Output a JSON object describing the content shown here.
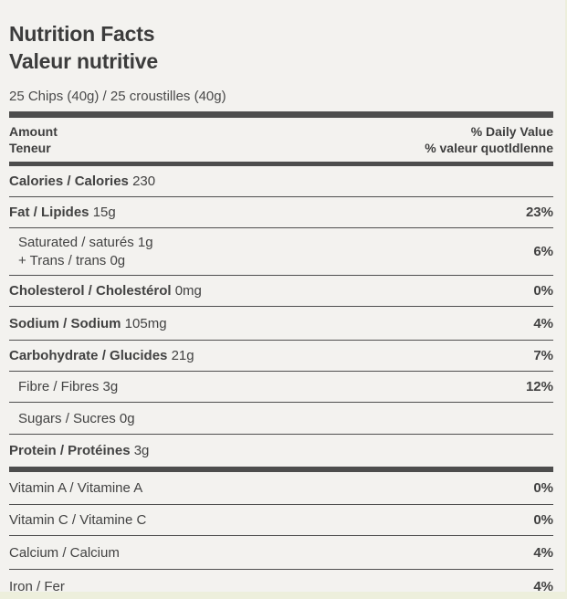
{
  "label": {
    "title_en": "Nutrition Facts",
    "title_fr": "Valeur nutritive",
    "serving": "25 Chips (40g) / 25 croustilles (40g)",
    "header": {
      "amount_en": "Amount",
      "amount_fr": "Teneur",
      "daily_value_en": "% Daily Value",
      "daily_value_fr": "% valeur quotldlenne"
    },
    "rows": [
      {
        "name": "Calories / Calories",
        "amount": "230",
        "percent": ""
      },
      {
        "name": "Fat / Lipides",
        "amount": "15g",
        "percent": "23%"
      },
      {
        "line1": "Saturated / saturés 1g",
        "line2": "+ Trans / trans 0g",
        "percent": "6%"
      },
      {
        "name": "Cholesterol / Cholestérol",
        "amount": "0mg",
        "percent": "0%"
      },
      {
        "name": "Sodium / Sodium",
        "amount": "105mg",
        "percent": "4%"
      },
      {
        "name": "Carbohydrate / Glucides",
        "amount": "21g",
        "percent": "7%"
      },
      {
        "text": "Fibre / Fibres 3g",
        "percent": "12%"
      },
      {
        "text": "Sugars / Sucres 0g",
        "percent": ""
      },
      {
        "name": "Protein / Protéines",
        "amount": "3g",
        "percent": ""
      },
      {
        "text": "Vitamin A / Vitamine A",
        "percent": "0%"
      },
      {
        "text": "Vitamin C / Vitamine C",
        "percent": "0%"
      },
      {
        "text": "Calcium / Calcium",
        "percent": "4%"
      },
      {
        "text": "Iron / Fer",
        "percent": "4%"
      }
    ],
    "colors": {
      "text": "#3f3f3f",
      "rule": "#4f4f4f",
      "thick_bar": "#4d4d4d",
      "card_background": "#f3f2ef",
      "page_background": "#edefdc"
    }
  }
}
